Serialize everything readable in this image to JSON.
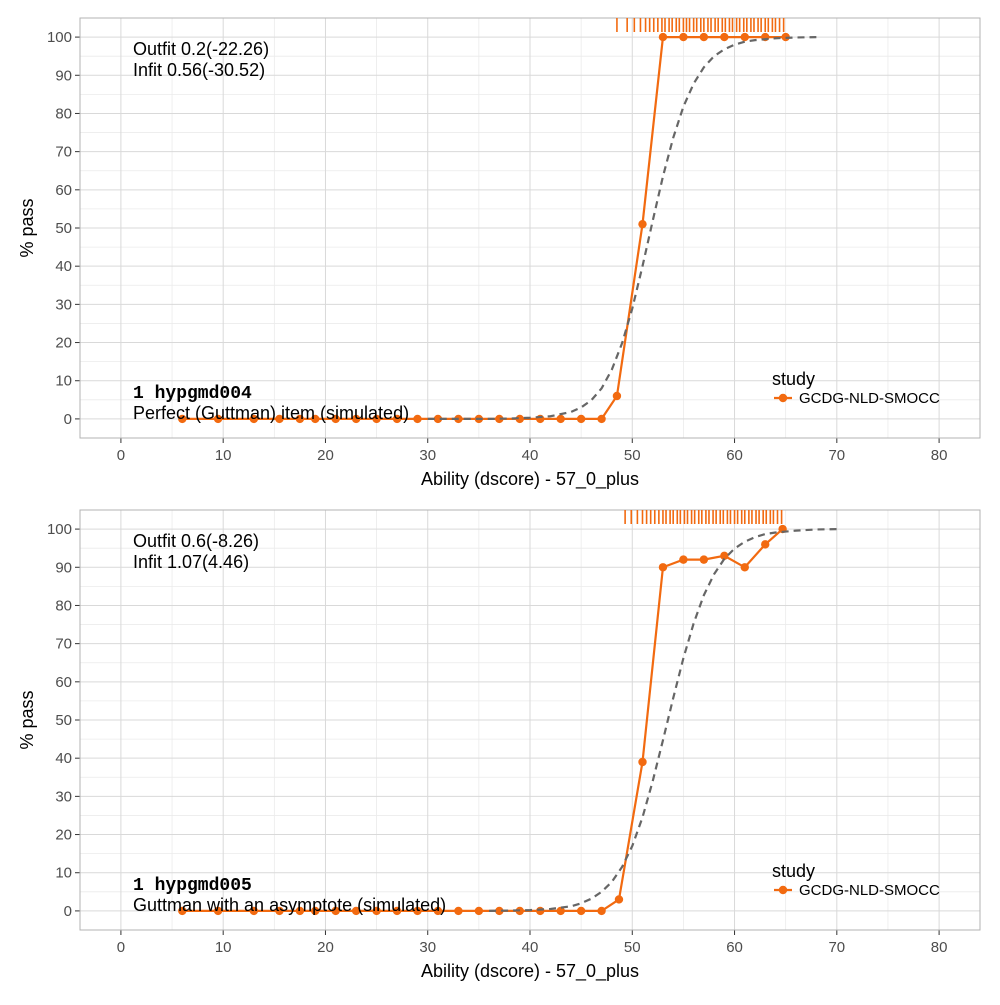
{
  "colors": {
    "observed": "#F26A10",
    "model": "#666666",
    "grid_major": "#D9D9D9",
    "grid_minor": "#EBEBEB",
    "panel_border": "#B3B3B3",
    "text": "#000000",
    "tick_text": "#4D4D4D"
  },
  "chart_data": [
    {
      "type": "line",
      "xlabel": "Ability (dscore) - 57_0_plus",
      "ylabel": "% pass",
      "xlim": [
        -4,
        84
      ],
      "ylim": [
        -5,
        105
      ],
      "xticks": [
        0,
        10,
        20,
        30,
        40,
        50,
        60,
        70,
        80
      ],
      "yticks": [
        0,
        10,
        20,
        30,
        40,
        50,
        60,
        70,
        80,
        90,
        100
      ],
      "grid": true,
      "legend": {
        "title": "study",
        "placement": "right",
        "entries": [
          "GCDG-NLD-SMOCC"
        ]
      },
      "annotations": {
        "fit_lines": [
          "Outfit 0.2(-22.26)",
          "Infit  0.56(-30.52)"
        ],
        "item_id": "1  hypgmd004",
        "item_label": "Perfect (Guttman) item (simulated)"
      },
      "series": [
        {
          "name": "GCDG-NLD-SMOCC",
          "x": [
            6,
            9.5,
            13,
            15.5,
            17.5,
            19,
            21,
            23,
            25,
            27,
            29,
            31,
            33,
            35,
            37,
            39,
            41,
            43,
            45,
            47,
            48.5,
            51,
            53,
            55,
            57,
            59,
            61,
            63,
            65
          ],
          "y": [
            0,
            0,
            0,
            0,
            0,
            0,
            0,
            0,
            0,
            0,
            0,
            0,
            0,
            0,
            0,
            0,
            0,
            0,
            0,
            0,
            6,
            51,
            100,
            100,
            100,
            100,
            100,
            100,
            100
          ]
        },
        {
          "style": "dashed",
          "x": [
            30,
            32,
            34,
            36,
            38,
            40,
            42,
            44,
            45,
            46,
            47,
            48,
            49,
            50,
            51,
            52,
            53,
            54,
            55,
            56,
            57,
            58,
            59,
            60,
            61,
            62,
            64,
            66,
            68
          ],
          "y": [
            0,
            0,
            0,
            0,
            0.1,
            0.3,
            0.7,
            1.8,
            3,
            4.9,
            8,
            12.9,
            19.8,
            28.9,
            40,
            51.9,
            63.5,
            73.6,
            81.8,
            87.8,
            92.1,
            95,
            96.8,
            98,
            98.8,
            99.2,
            99.7,
            99.9,
            100
          ]
        }
      ],
      "rug_x": [
        48.5,
        49.5,
        50.2,
        50.8,
        51.3,
        51.7,
        52.1,
        52.5,
        52.9,
        53.2,
        53.6,
        53.9,
        54.3,
        54.6,
        55,
        55.3,
        55.6,
        56,
        56.3,
        56.7,
        57,
        57.4,
        57.7,
        58.1,
        58.4,
        58.8,
        59.1,
        59.5,
        59.8,
        60.2,
        60.5,
        60.9,
        61.2,
        61.6,
        61.9,
        62.3,
        62.6,
        63,
        63.3,
        63.7,
        64,
        64.4,
        64.8
      ]
    },
    {
      "type": "line",
      "xlabel": "Ability (dscore) - 57_0_plus",
      "ylabel": "% pass",
      "xlim": [
        -4,
        84
      ],
      "ylim": [
        -5,
        105
      ],
      "xticks": [
        0,
        10,
        20,
        30,
        40,
        50,
        60,
        70,
        80
      ],
      "yticks": [
        0,
        10,
        20,
        30,
        40,
        50,
        60,
        70,
        80,
        90,
        100
      ],
      "grid": true,
      "legend": {
        "title": "study",
        "placement": "right",
        "entries": [
          "GCDG-NLD-SMOCC"
        ]
      },
      "annotations": {
        "fit_lines": [
          "Outfit 0.6(-8.26)",
          "Infit  1.07(4.46)"
        ],
        "item_id": "1  hypgmd005",
        "item_label": "Guttman with an asymptote (simulated)"
      },
      "series": [
        {
          "name": "GCDG-NLD-SMOCC",
          "x": [
            6,
            9.5,
            13,
            15.5,
            17.5,
            19,
            21,
            23,
            25,
            27,
            29,
            31,
            33,
            35,
            37,
            39,
            41,
            43,
            45,
            47,
            48.7,
            51,
            53,
            55,
            57,
            59,
            61,
            63,
            64.7
          ],
          "y": [
            0,
            0,
            0,
            0,
            0,
            0,
            0,
            0,
            0,
            0,
            0,
            0,
            0,
            0,
            0,
            0,
            0,
            0,
            0,
            0,
            3,
            39,
            90,
            92,
            92,
            93,
            90,
            96,
            100
          ]
        },
        {
          "style": "dashed",
          "x": [
            36,
            38,
            40,
            42,
            44,
            45,
            46,
            47,
            48,
            49,
            50,
            51,
            52,
            53,
            54,
            55,
            56,
            57,
            58,
            59,
            60,
            61,
            62,
            63,
            64,
            66,
            68,
            70
          ],
          "y": [
            0,
            0.1,
            0.2,
            0.5,
            1.2,
            2,
            3.2,
            5,
            7.6,
            11.5,
            17,
            24.5,
            34,
            44.7,
            55.7,
            66.2,
            75.3,
            82.7,
            88.2,
            92.2,
            94.9,
            96.7,
            97.9,
            98.7,
            99.1,
            99.6,
            99.9,
            100
          ]
        }
      ],
      "rug_x": [
        49.3,
        49.9,
        50.5,
        51,
        51.4,
        51.8,
        52.2,
        52.6,
        53,
        53.3,
        53.7,
        54,
        54.4,
        54.7,
        55.1,
        55.4,
        55.8,
        56.1,
        56.5,
        56.8,
        57.2,
        57.5,
        57.9,
        58.2,
        58.6,
        58.9,
        59.3,
        59.6,
        60,
        60.3,
        60.7,
        61,
        61.4,
        61.7,
        62.1,
        62.4,
        62.8,
        63.1,
        63.5,
        63.8,
        64.2,
        64.6
      ]
    }
  ]
}
